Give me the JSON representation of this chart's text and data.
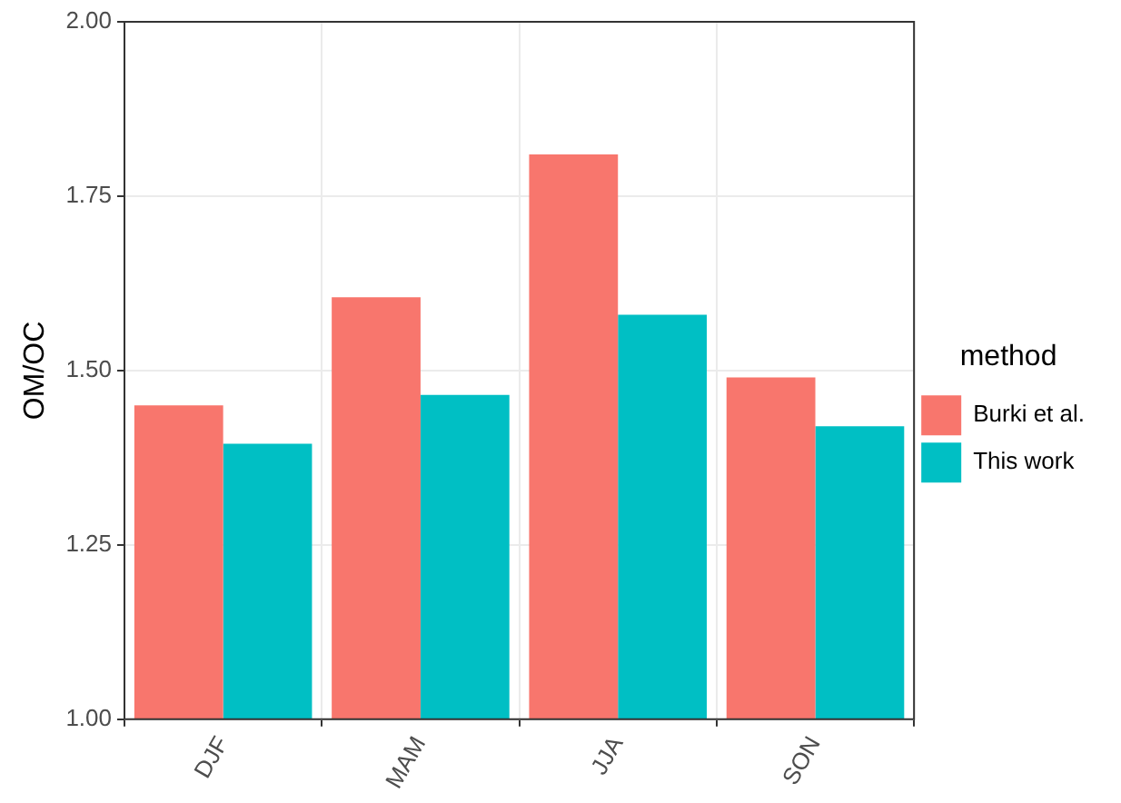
{
  "chart_data": {
    "type": "bar",
    "ylabel": "OM/OC",
    "legend_title": "method",
    "categories": [
      "DJF",
      "MAM",
      "JJA",
      "SON"
    ],
    "series": [
      {
        "name": "Burki et al.",
        "color": "#f8766d",
        "values": [
          1.45,
          1.605,
          1.81,
          1.49
        ]
      },
      {
        "name": "This work",
        "color": "#00bfc4",
        "values": [
          1.395,
          1.465,
          1.58,
          1.42
        ]
      }
    ],
    "ylim": [
      1,
      2
    ],
    "yticks": [
      {
        "value": 1,
        "label": "1.00"
      },
      {
        "value": 1.25,
        "label": "1.25"
      },
      {
        "value": 1.5,
        "label": "1.50"
      },
      {
        "value": 1.75,
        "label": "1.75"
      },
      {
        "value": 2,
        "label": "2.00"
      }
    ],
    "grid": true,
    "legend": "right"
  }
}
